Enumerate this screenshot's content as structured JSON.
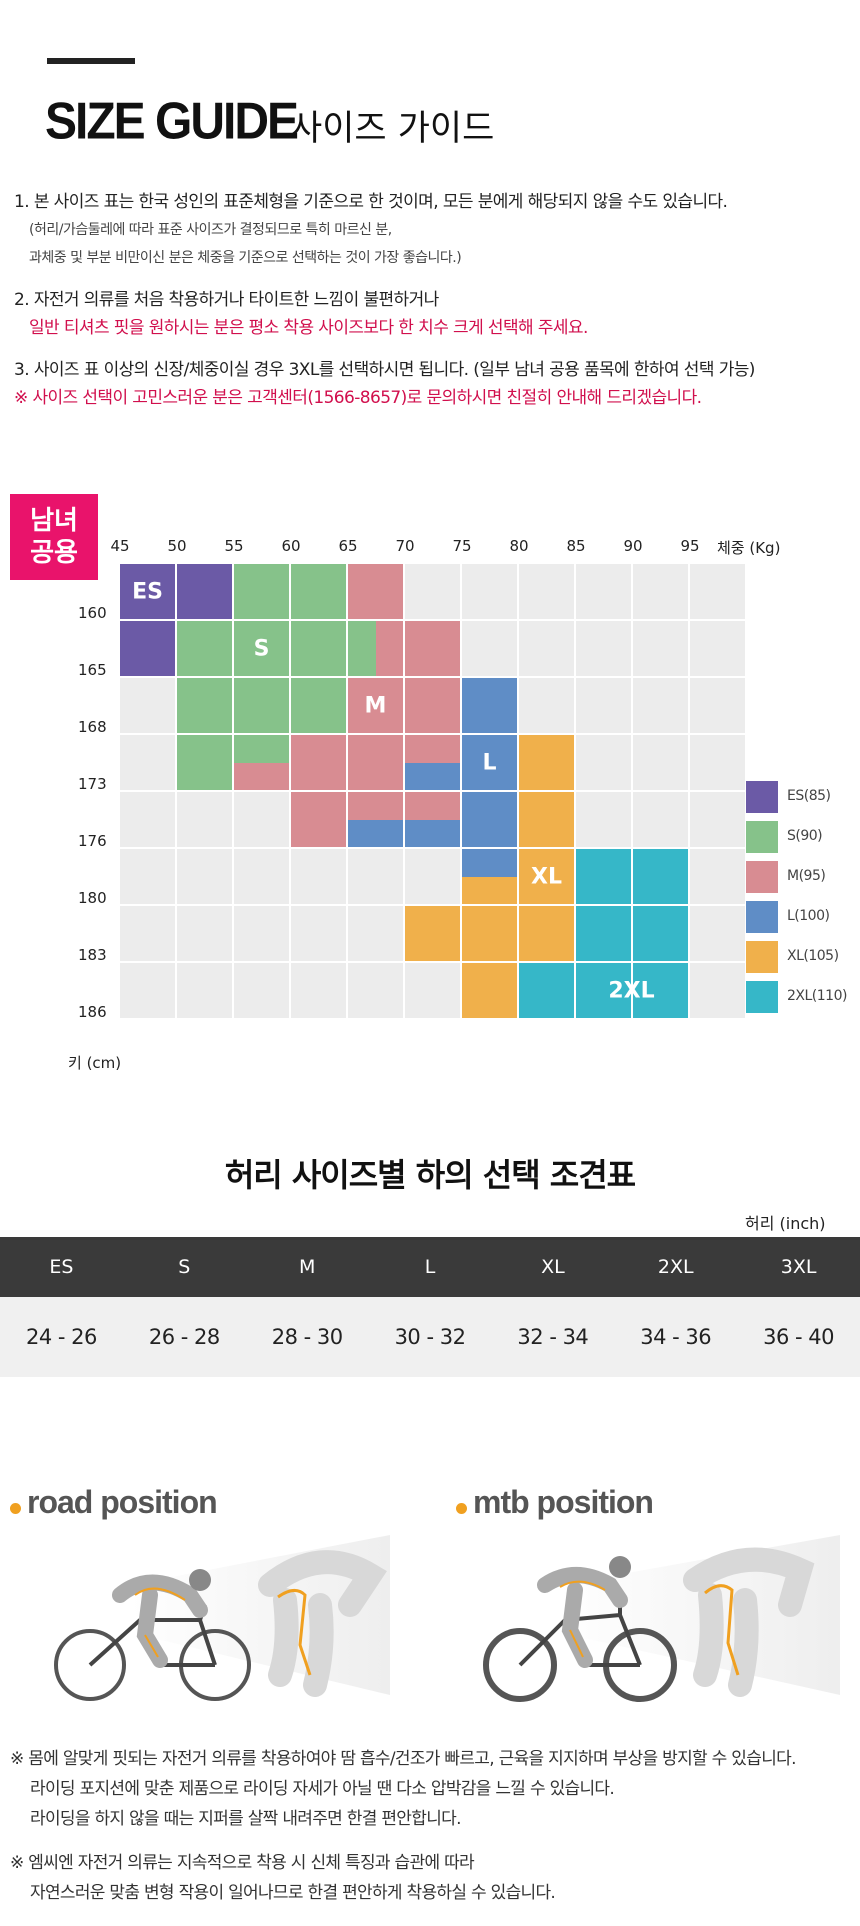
{
  "header": {
    "title_en": "SIZE GUIDE",
    "title_ko": "사이즈 가이드"
  },
  "notes": {
    "n1": "1. 본 사이즈 표는 한국 성인의 표준체형을 기준으로 한 것이며, 모든 분에게 해당되지 않을 수도 있습니다.",
    "n1_sub1": "(허리/가슴둘레에 따라 표준 사이즈가 결정되므로 특히 마르신 분,",
    "n1_sub2": "과체중 및 부분 비만이신 분은 체중을 기준으로 선택하는 것이 가장 좋습니다.)",
    "n2": "2. 자전거 의류를 처음 착용하거나 타이트한 느낌이 불편하거나",
    "n2_red": "일반 티셔츠 핏을 원하시는 분은 평소 착용 사이즈보다 한 치수 크게 선택해 주세요.",
    "n3": "3. 사이즈 표 이상의 신장/체중이실 경우 3XL를 선택하시면 됩니다. (일부 남녀 공용 품목에 한하여 선택 가능)",
    "n3_red": "※ 사이즈 선택이 고민스러운 분은 고객센터(1566-8657)로 문의하시면 친절히 안내해 드리겠습니다."
  },
  "size_chart": {
    "badge_line1": "남녀",
    "badge_line2": "공용",
    "weight_unit": "체중 (Kg)",
    "height_unit": "키 (cm)",
    "weights": [
      "45",
      "50",
      "55",
      "60",
      "65",
      "70",
      "75",
      "80",
      "85",
      "90",
      "95"
    ],
    "heights": [
      "160",
      "165",
      "168",
      "173",
      "176",
      "180",
      "183",
      "186"
    ],
    "colors": {
      "ES": "#6b5aa6",
      "S": "#86c28a",
      "M": "#d88c92",
      "L": "#5f8dc6",
      "XL": "#f0b04b",
      "2XL": "#36b7c8",
      "empty": "#ececec"
    },
    "grid_rows": [
      [
        "ES",
        "ES",
        "S",
        "S",
        "M",
        "",
        "",
        "",
        "",
        "",
        ""
      ],
      [
        "ES",
        "S",
        "S",
        "S",
        "S|M",
        "M",
        "",
        "",
        "",
        "",
        ""
      ],
      [
        "",
        "S",
        "S",
        "S",
        "M",
        "M",
        "L",
        "",
        "",
        "",
        ""
      ],
      [
        "",
        "S",
        "S/M",
        "M",
        "M",
        "M/L",
        "L",
        "XL",
        "",
        "",
        ""
      ],
      [
        "",
        "",
        "",
        "M",
        "M/L",
        "M/L",
        "L",
        "XL",
        "",
        "",
        ""
      ],
      [
        "",
        "",
        "",
        "",
        "",
        "",
        "L/XL",
        "XL",
        "2XL",
        "2XL",
        ""
      ],
      [
        "",
        "",
        "",
        "",
        "",
        "XL",
        "XL",
        "XL",
        "2XL",
        "2XL",
        ""
      ],
      [
        "",
        "",
        "",
        "",
        "",
        "",
        "XL",
        "2XL",
        "2XL",
        "2XL",
        ""
      ]
    ],
    "labels": {
      "ES": "ES",
      "S": "S",
      "M": "M",
      "L": "L",
      "XL": "XL",
      "2XL": "2XL"
    },
    "legend": [
      {
        "key": "ES",
        "text": "ES(85)"
      },
      {
        "key": "S",
        "text": "S(90)"
      },
      {
        "key": "M",
        "text": "M(95)"
      },
      {
        "key": "L",
        "text": "L(100)"
      },
      {
        "key": "XL",
        "text": "XL(105)"
      },
      {
        "key": "2XL",
        "text": "2XL(110)"
      }
    ]
  },
  "waist_table": {
    "title": "허리 사이즈별 하의 선택 조견표",
    "unit": "허리 (inch)",
    "headers": [
      "ES",
      "S",
      "M",
      "L",
      "XL",
      "2XL",
      "3XL"
    ],
    "values": [
      "24 - 26",
      "26 - 28",
      "28 - 30",
      "30 - 32",
      "32 - 34",
      "34 - 36",
      "36 - 40"
    ]
  },
  "positions": {
    "road": "road position",
    "mtb": "mtb position"
  },
  "bottom_notes": {
    "b1": "※ 몸에 알맞게 핏되는 자전거 의류를 착용하여야 땀 흡수/건조가 빠르고, 근육을 지지하며 부상을 방지할 수 있습니다.",
    "b2": "라이딩 포지션에 맞춘 제품으로 라이딩 자세가 아닐 땐 다소 압박감을 느낄 수 있습니다.",
    "b3": "라이딩을 하지 않을 때는 지퍼를 살짝 내려주면 한결 편안합니다.",
    "b4": "※ 엠씨엔 자전거 의류는 지속적으로 착용 시 신체 특징과 습관에 따라",
    "b5": "자연스러운 맞춤 변형 작용이 일어나므로 한결 편안하게 착용하실 수 있습니다."
  }
}
